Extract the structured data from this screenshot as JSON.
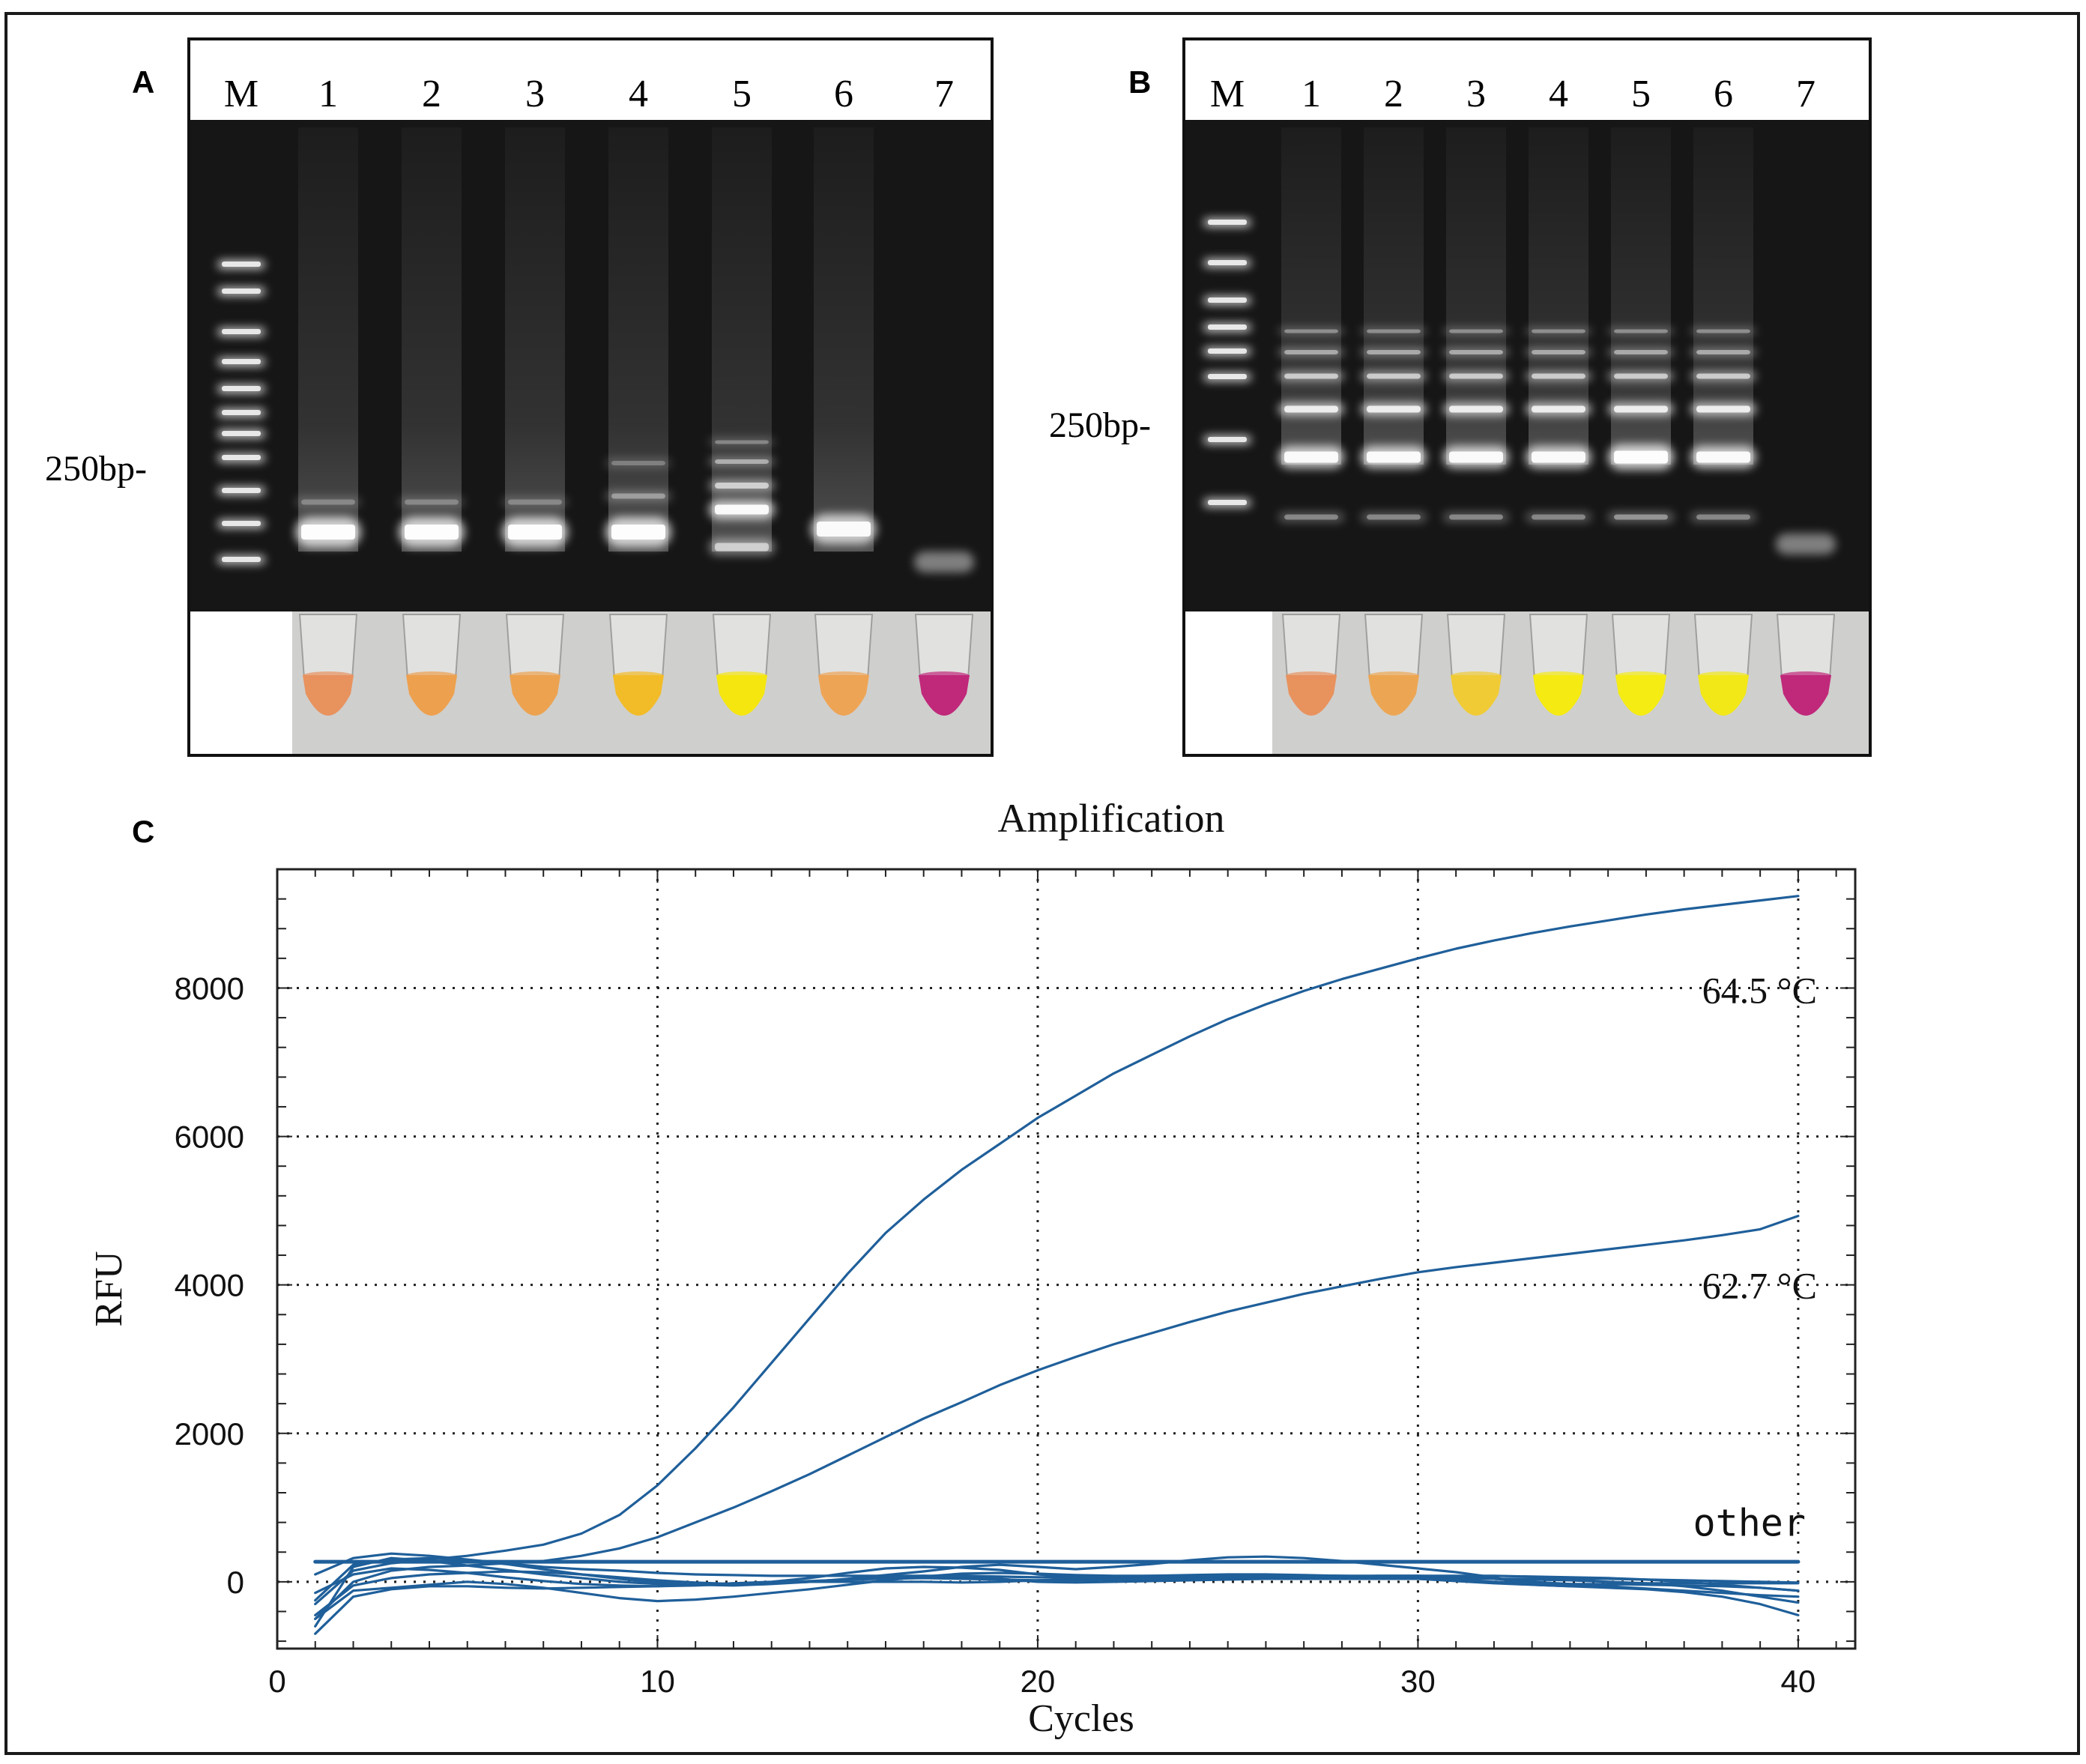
{
  "panels": {
    "A": {
      "label": "A",
      "marker_label": "250bp-",
      "lane_labels": [
        "M",
        "1",
        "2",
        "3",
        "4",
        "5",
        "6",
        "7"
      ],
      "tube_colors": [
        "#e8925e",
        "#eda04e",
        "#eda250",
        "#f2bb28",
        "#f5e610",
        "#eea455",
        "#c0287a"
      ]
    },
    "B": {
      "label": "B",
      "marker_label": "250bp-",
      "lane_labels": [
        "M",
        "1",
        "2",
        "3",
        "4",
        "5",
        "6",
        "7"
      ],
      "tube_colors": [
        "#e8925e",
        "#eca653",
        "#f0cb36",
        "#f5ea12",
        "#f5ec14",
        "#f2e818",
        "#c0287a"
      ]
    },
    "C": {
      "label": "C"
    }
  },
  "chart_data": {
    "type": "line",
    "title": "Amplification",
    "xlabel": "Cycles",
    "ylabel": "RFU",
    "xlim": [
      0,
      41.5
    ],
    "ylim": [
      -900,
      9600
    ],
    "xticks": [
      0,
      10,
      20,
      30,
      40
    ],
    "yticks": [
      0,
      2000,
      4000,
      6000,
      8000
    ],
    "grid": true,
    "line_color": "#1f5f9a",
    "series": [
      {
        "name": "64.5 °C",
        "x": [
          1,
          2,
          3,
          4,
          5,
          6,
          7,
          8,
          9,
          10,
          11,
          12,
          13,
          14,
          15,
          16,
          17,
          18,
          19,
          20,
          21,
          22,
          23,
          24,
          25,
          26,
          27,
          28,
          29,
          30,
          31,
          32,
          33,
          34,
          35,
          36,
          37,
          38,
          39,
          40
        ],
        "y": [
          -300,
          150,
          250,
          300,
          350,
          420,
          500,
          650,
          900,
          1300,
          1800,
          2350,
          2950,
          3550,
          4150,
          4700,
          5150,
          5550,
          5900,
          6250,
          6550,
          6850,
          7100,
          7350,
          7580,
          7780,
          7960,
          8120,
          8260,
          8400,
          8530,
          8640,
          8740,
          8830,
          8910,
          8990,
          9060,
          9120,
          9180,
          9240
        ]
      },
      {
        "name": "62.7 °C",
        "x": [
          1,
          2,
          3,
          4,
          5,
          6,
          7,
          8,
          9,
          10,
          11,
          12,
          13,
          14,
          15,
          16,
          17,
          18,
          19,
          20,
          21,
          22,
          23,
          24,
          25,
          26,
          27,
          28,
          29,
          30,
          31,
          32,
          33,
          34,
          35,
          36,
          37,
          38,
          39,
          40
        ],
        "y": [
          -500,
          0,
          150,
          200,
          220,
          250,
          280,
          350,
          450,
          600,
          800,
          1000,
          1220,
          1450,
          1700,
          1950,
          2200,
          2420,
          2650,
          2850,
          3030,
          3200,
          3350,
          3500,
          3640,
          3760,
          3880,
          3980,
          4080,
          4170,
          4240,
          4300,
          4360,
          4420,
          4480,
          4540,
          4600,
          4670,
          4750,
          4930
        ]
      },
      {
        "name": "other",
        "x": [
          1,
          2,
          3,
          4,
          5,
          6,
          7,
          8,
          9,
          10,
          11,
          12,
          13,
          14,
          15,
          16,
          17,
          18,
          19,
          20,
          21,
          22,
          23,
          24,
          25,
          26,
          27,
          28,
          29,
          30,
          31,
          32,
          33,
          34,
          35,
          36,
          37,
          38,
          39,
          40
        ],
        "y": [
          270,
          270,
          270,
          270,
          270,
          270,
          270,
          270,
          270,
          270,
          270,
          270,
          270,
          270,
          270,
          270,
          270,
          270,
          270,
          270,
          270,
          270,
          270,
          270,
          270,
          270,
          270,
          270,
          270,
          270,
          270,
          270,
          270,
          270,
          270,
          270,
          270,
          270,
          270,
          270
        ]
      },
      {
        "name": "",
        "x": [
          1,
          2,
          3,
          4,
          5,
          6,
          7,
          8,
          9,
          10,
          11,
          12,
          13,
          14,
          15,
          16,
          17,
          18,
          19,
          20,
          21,
          22,
          23,
          24,
          25,
          26,
          27,
          28,
          29,
          30,
          31,
          32,
          33,
          34,
          35,
          36,
          37,
          38,
          39,
          40
        ],
        "y": [
          -600,
          200,
          320,
          280,
          220,
          160,
          100,
          50,
          0,
          -30,
          -40,
          -20,
          0,
          50,
          120,
          180,
          200,
          190,
          160,
          100,
          60,
          40,
          30,
          30,
          40,
          50,
          60,
          70,
          80,
          80,
          70,
          40,
          0,
          -30,
          -60,
          -90,
          -120,
          -150,
          -180,
          -200
        ]
      },
      {
        "name": "",
        "x": [
          1,
          2,
          3,
          4,
          5,
          6,
          7,
          8,
          9,
          10,
          11,
          12,
          13,
          14,
          15,
          16,
          17,
          18,
          19,
          20,
          21,
          22,
          23,
          24,
          25,
          26,
          27,
          28,
          29,
          30,
          31,
          32,
          33,
          34,
          35,
          36,
          37,
          38,
          39,
          40
        ],
        "y": [
          -500,
          -120,
          -80,
          -40,
          0,
          -30,
          -80,
          -150,
          -220,
          -260,
          -240,
          -200,
          -150,
          -100,
          -40,
          20,
          70,
          110,
          120,
          110,
          90,
          80,
          80,
          90,
          100,
          100,
          90,
          80,
          70,
          60,
          50,
          40,
          30,
          20,
          0,
          -20,
          -60,
          -120,
          -200,
          -280
        ]
      },
      {
        "name": "",
        "x": [
          1,
          2,
          3,
          4,
          5,
          6,
          7,
          8,
          9,
          10,
          11,
          12,
          13,
          14,
          15,
          16,
          17,
          18,
          19,
          20,
          21,
          22,
          23,
          24,
          25,
          26,
          27,
          28,
          29,
          30,
          31,
          32,
          33,
          34,
          35,
          36,
          37,
          38,
          39,
          40
        ],
        "y": [
          -250,
          230,
          300,
          320,
          290,
          240,
          170,
          100,
          40,
          -10,
          -40,
          -50,
          -30,
          0,
          40,
          90,
          140,
          200,
          230,
          200,
          170,
          200,
          240,
          290,
          330,
          340,
          320,
          280,
          230,
          180,
          130,
          60,
          -40,
          -60,
          -40,
          -20,
          -20,
          -20,
          -20,
          -20
        ]
      },
      {
        "name": "",
        "x": [
          1,
          2,
          3,
          4,
          5,
          6,
          7,
          8,
          9,
          10,
          11,
          12,
          13,
          14,
          15,
          16,
          17,
          18,
          19,
          20,
          21,
          22,
          23,
          24,
          25,
          26,
          27,
          28,
          29,
          30,
          31,
          32,
          33,
          34,
          35,
          36,
          37,
          38,
          39,
          40
        ],
        "y": [
          -700,
          -200,
          -100,
          -60,
          -60,
          -80,
          -90,
          -80,
          -70,
          -60,
          -40,
          -20,
          -10,
          0,
          0,
          0,
          0,
          -10,
          0,
          20,
          40,
          50,
          60,
          60,
          60,
          60,
          60,
          70,
          60,
          40,
          10,
          -20,
          -40,
          -60,
          -80,
          -100,
          -140,
          -200,
          -300,
          -450
        ]
      },
      {
        "name": "",
        "x": [
          1,
          2,
          3,
          4,
          5,
          6,
          7,
          8,
          9,
          10,
          11,
          12,
          13,
          14,
          15,
          16,
          17,
          18,
          19,
          20,
          21,
          22,
          23,
          24,
          25,
          26,
          27,
          28,
          29,
          30,
          31,
          32,
          33,
          34,
          35,
          36,
          37,
          38,
          39,
          40
        ],
        "y": [
          100,
          320,
          380,
          350,
          300,
          250,
          200,
          170,
          150,
          120,
          100,
          90,
          80,
          80,
          80,
          80,
          80,
          60,
          40,
          0,
          -10,
          0,
          10,
          20,
          30,
          40,
          40,
          40,
          40,
          40,
          40,
          40,
          40,
          40,
          40,
          30,
          20,
          10,
          0,
          -10
        ]
      },
      {
        "name": "",
        "x": [
          1,
          2,
          3,
          4,
          5,
          6,
          7,
          8,
          9,
          10,
          11,
          12,
          13,
          14,
          15,
          16,
          17,
          18,
          19,
          20,
          21,
          22,
          23,
          24,
          25,
          26,
          27,
          28,
          29,
          30,
          31,
          32,
          33,
          34,
          35,
          36,
          37,
          38,
          39,
          40
        ],
        "y": [
          -450,
          -50,
          50,
          100,
          120,
          140,
          130,
          100,
          60,
          20,
          -10,
          -30,
          -20,
          0,
          30,
          60,
          80,
          80,
          70,
          60,
          60,
          70,
          80,
          80,
          80,
          80,
          80,
          80,
          80,
          80,
          80,
          80,
          70,
          60,
          50,
          30,
          0,
          -40,
          -80,
          -120
        ]
      },
      {
        "name": "",
        "x": [
          1,
          2,
          3,
          4,
          5,
          6,
          7,
          8,
          9,
          10,
          11,
          12,
          13,
          14,
          15,
          16,
          17,
          18,
          19,
          20,
          21,
          22,
          23,
          24,
          25,
          26,
          27,
          28,
          29,
          30,
          31,
          32,
          33,
          34,
          35,
          36,
          37,
          38,
          39,
          40
        ],
        "y": [
          -150,
          100,
          180,
          160,
          120,
          60,
          10,
          -30,
          -50,
          -60,
          -50,
          -30,
          -10,
          10,
          30,
          40,
          50,
          40,
          30,
          20,
          20,
          30,
          40,
          40,
          40,
          50,
          50,
          50,
          50,
          40,
          20,
          0,
          -20,
          -30,
          -30,
          -40,
          -50,
          -60,
          -80,
          -120
        ]
      }
    ]
  }
}
